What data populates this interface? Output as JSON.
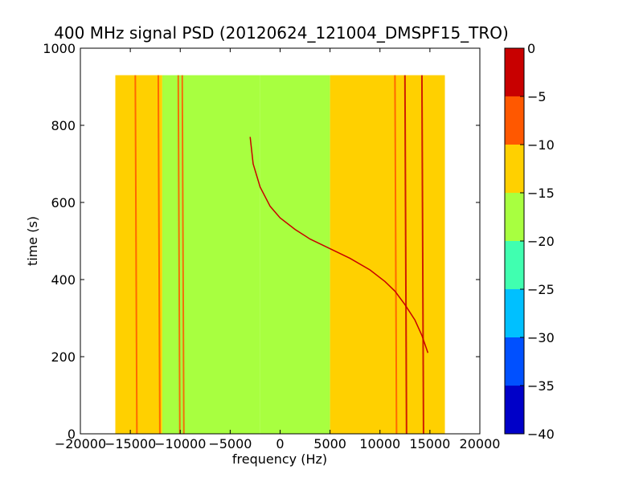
{
  "chart_data": {
    "type": "heatmap",
    "title": "400 MHz signal PSD (20120624_121004_DMSPF15_TRO)",
    "xlabel": "frequency (Hz)",
    "ylabel": "time (s)",
    "xlim": [
      -20000,
      20000
    ],
    "ylim": [
      0,
      1000
    ],
    "x_ticks": [
      -20000,
      -15000,
      -10000,
      -5000,
      0,
      5000,
      10000,
      15000,
      20000
    ],
    "x_tick_labels": [
      "−20000",
      "−15000",
      "−10000",
      "−5000",
      "0",
      "5000",
      "10000",
      "15000",
      "20000"
    ],
    "y_ticks": [
      0,
      200,
      400,
      600,
      800,
      1000
    ],
    "y_tick_labels": [
      "0",
      "200",
      "400",
      "600",
      "800",
      "1000"
    ],
    "data_extent": {
      "freq_min": -16500,
      "freq_max": 16500,
      "time_min": 0,
      "time_max": 930
    },
    "background_bands": [
      {
        "freq_from": -16500,
        "freq_to": -11800,
        "level": -12.5
      },
      {
        "freq_from": -11800,
        "freq_to": -2000,
        "level": -17.5
      },
      {
        "freq_from": -2000,
        "freq_to": 5000,
        "level": -16.5
      },
      {
        "freq_from": 5000,
        "freq_to": 16500,
        "level": -12.5
      }
    ],
    "vertical_lines": [
      {
        "freq": -14500,
        "level": -8
      },
      {
        "freq": -12200,
        "level": -8
      },
      {
        "freq": -10200,
        "level": -9
      },
      {
        "freq": -9800,
        "level": -9
      },
      {
        "freq": 11500,
        "level": -5
      },
      {
        "freq": 12500,
        "level": -4
      },
      {
        "freq": 14200,
        "level": -4
      }
    ],
    "signal_trace": {
      "level": -4,
      "points": [
        [
          -3000,
          770
        ],
        [
          -2700,
          700
        ],
        [
          -2000,
          640
        ],
        [
          -1000,
          590
        ],
        [
          0,
          560
        ],
        [
          1500,
          530
        ],
        [
          3000,
          505
        ],
        [
          5000,
          480
        ],
        [
          7000,
          455
        ],
        [
          9000,
          425
        ],
        [
          10500,
          395
        ],
        [
          11500,
          370
        ],
        [
          12500,
          335
        ],
        [
          13500,
          295
        ],
        [
          14200,
          255
        ],
        [
          14800,
          210
        ]
      ]
    },
    "colorbar": {
      "colormap": "jet",
      "min": -40,
      "max": 0,
      "ticks": [
        0,
        -5,
        -10,
        -15,
        -20,
        -25,
        -30,
        -35,
        -40
      ],
      "tick_labels": [
        "0",
        "−5",
        "−10",
        "−15",
        "−20",
        "−25",
        "−30",
        "−35",
        "−40"
      ],
      "levels": [
        {
          "from": -40,
          "to": -35,
          "color": "#0000c8"
        },
        {
          "from": -35,
          "to": -30,
          "color": "#0050ff"
        },
        {
          "from": -30,
          "to": -25,
          "color": "#00c0ff"
        },
        {
          "from": -25,
          "to": -20,
          "color": "#40ffb0"
        },
        {
          "from": -20,
          "to": -15,
          "color": "#a8ff40"
        },
        {
          "from": -15,
          "to": -10,
          "color": "#ffd000"
        },
        {
          "from": -10,
          "to": -5,
          "color": "#ff5800"
        },
        {
          "from": -5,
          "to": 0,
          "color": "#c80000"
        }
      ]
    }
  }
}
